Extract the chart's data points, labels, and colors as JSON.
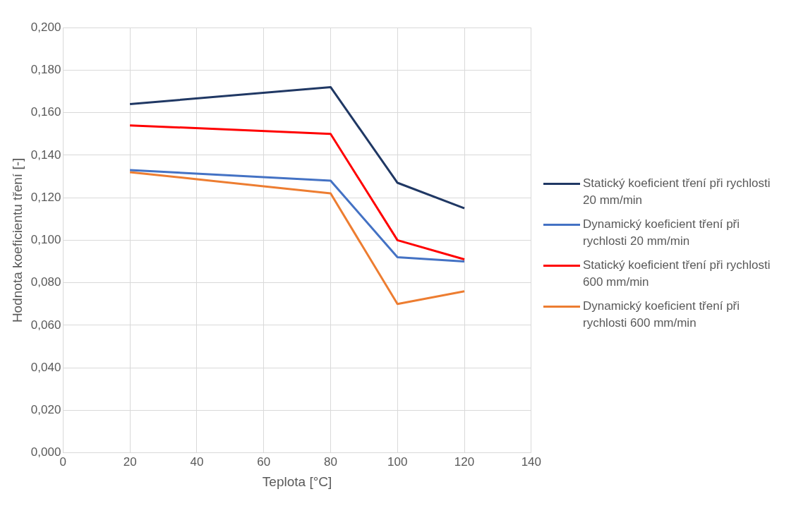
{
  "chart_data": {
    "type": "line",
    "xlabel": "Teplota [°C]",
    "ylabel": "Hodnota koeficientu tření [-]",
    "x": [
      20,
      80,
      100,
      120
    ],
    "series": [
      {
        "name": "Statický koeficient tření při rychlosti 20 mm/min",
        "color": "#203864",
        "values": [
          0.164,
          0.172,
          0.127,
          0.115
        ]
      },
      {
        "name": "Dynamický koeficient tření při rychlosti 20 mm/min",
        "color": "#4472c4",
        "values": [
          0.133,
          0.128,
          0.092,
          0.09
        ]
      },
      {
        "name": "Statický koeficient tření při rychlosti 600 mm/min",
        "color": "#ff0000",
        "values": [
          0.154,
          0.15,
          0.1,
          0.091
        ]
      },
      {
        "name": "Dynamický koeficient tření při rychlosti 600 mm/min",
        "color": "#ed7d31",
        "values": [
          0.132,
          0.122,
          0.07,
          0.076
        ]
      }
    ],
    "xlim": [
      0,
      140
    ],
    "xticks": [
      0,
      20,
      40,
      60,
      80,
      100,
      120,
      140
    ],
    "ylim": [
      0,
      0.2
    ],
    "yticks": [
      {
        "value": 0,
        "label": "0,000"
      },
      {
        "value": 0.02,
        "label": "0,020"
      },
      {
        "value": 0.04,
        "label": "0,040"
      },
      {
        "value": 0.06,
        "label": "0,060"
      },
      {
        "value": 0.08,
        "label": "0,080"
      },
      {
        "value": 0.1,
        "label": "0,100"
      },
      {
        "value": 0.12,
        "label": "0,120"
      },
      {
        "value": 0.14,
        "label": "0,140"
      },
      {
        "value": 0.16,
        "label": "0,160"
      },
      {
        "value": 0.18,
        "label": "0,180"
      },
      {
        "value": 0.2,
        "label": "0,200"
      }
    ],
    "grid": true,
    "legend": "right",
    "marker": "none",
    "line_style": "solid"
  }
}
